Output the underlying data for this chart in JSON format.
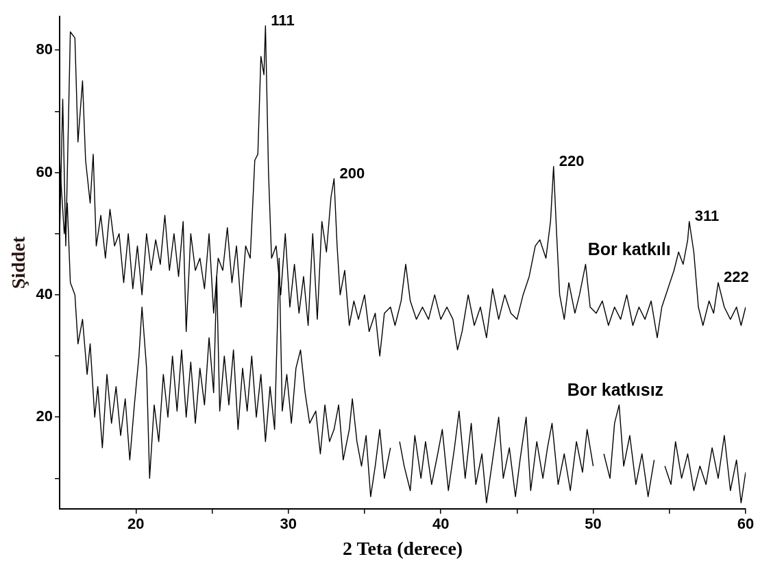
{
  "chart_data": {
    "type": "line",
    "xlabel": "2 Teta (derece)",
    "ylabel": "Şiddet",
    "xlim": [
      15,
      60
    ],
    "ylim": [
      5,
      85.5
    ],
    "xticks": [
      20,
      {
        "value": 25,
        "label": null
      },
      30,
      {
        "value": 35,
        "label": null
      },
      40,
      {
        "value": 45,
        "label": null
      },
      50,
      {
        "value": 55,
        "label": null
      },
      60
    ],
    "yticks": [
      {
        "value": 10,
        "label": null
      },
      20,
      {
        "value": 30,
        "label": null
      },
      40,
      {
        "value": 50,
        "label": null
      },
      60,
      {
        "value": 70,
        "label": null
      },
      80
    ],
    "grid": false,
    "legend": false,
    "marker": "none",
    "line_style": "solid",
    "annotations": [
      {
        "text": "111",
        "x": 28.5,
        "y": 84
      },
      {
        "text": "200",
        "x": 33.0,
        "y": 59
      },
      {
        "text": "220",
        "x": 47.4,
        "y": 61
      },
      {
        "text": "311",
        "x": 56.3,
        "y": 52
      },
      {
        "text": "222",
        "x": 58.2,
        "y": 42
      }
    ],
    "series": [
      {
        "name": "Bor katkılı",
        "color": "#000000",
        "x": [
          15,
          15.2,
          15.4,
          15.7,
          16.0,
          16.2,
          16.5,
          16.7,
          17.0,
          17.2,
          17.4,
          17.7,
          18.0,
          18.3,
          18.6,
          18.9,
          19.2,
          19.5,
          19.8,
          20.1,
          20.4,
          20.7,
          21.0,
          21.3,
          21.6,
          21.9,
          22.2,
          22.5,
          22.8,
          23.1,
          23.3,
          23.6,
          23.9,
          24.2,
          24.5,
          24.8,
          25.1,
          25.4,
          25.7,
          26.0,
          26.3,
          26.6,
          26.9,
          27.2,
          27.5,
          27.8,
          28.0,
          28.2,
          28.4,
          28.5,
          28.7,
          28.9,
          29.2,
          29.5,
          29.8,
          30.1,
          30.4,
          30.7,
          31.0,
          31.3,
          31.6,
          31.9,
          32.2,
          32.5,
          32.8,
          33.0,
          33.2,
          33.4,
          33.7,
          34.0,
          34.3,
          34.6,
          35.0,
          35.3,
          35.7,
          36.0,
          36.3,
          36.7,
          37.0,
          37.4,
          37.7,
          38.0,
          38.4,
          38.8,
          39.2,
          39.6,
          40.0,
          40.4,
          40.8,
          41.1,
          41.4,
          41.8,
          42.2,
          42.6,
          43.0,
          43.4,
          43.8,
          44.2,
          44.6,
          45.0,
          45.4,
          45.8,
          46.2,
          46.5,
          46.9,
          47.2,
          47.4,
          47.6,
          47.8,
          48.1,
          48.4,
          48.8,
          49.1,
          49.5,
          49.8,
          50.2,
          50.6,
          51.0,
          51.4,
          51.8,
          52.2,
          52.6,
          53.0,
          53.4,
          53.8,
          54.2,
          54.5,
          54.9,
          55.3,
          55.6,
          55.9,
          56.2,
          56.3,
          56.6,
          56.9,
          57.2,
          57.6,
          57.9,
          58.2,
          58.6,
          59.0,
          59.4,
          59.7,
          60
        ],
        "values": [
          50,
          72,
          48,
          83,
          82,
          65,
          75,
          62,
          55,
          63,
          48,
          53,
          46,
          54,
          48,
          50,
          42,
          50,
          41,
          48,
          40,
          50,
          44,
          49,
          45,
          53,
          44,
          50,
          43,
          52,
          34,
          50,
          44,
          46,
          41,
          50,
          37,
          46,
          44,
          51,
          42,
          48,
          38,
          48,
          46,
          62,
          63,
          79,
          76,
          84,
          60,
          46,
          48,
          40,
          50,
          38,
          45,
          37,
          43,
          35,
          50,
          36,
          52,
          47,
          56,
          59,
          48,
          40,
          44,
          35,
          39,
          36,
          40,
          34,
          37,
          30,
          37,
          38,
          35,
          39,
          45,
          39,
          36,
          38,
          36,
          40,
          36,
          38,
          36,
          31,
          34,
          40,
          35,
          38,
          33,
          41,
          36,
          40,
          37,
          36,
          40,
          43,
          48,
          49,
          46,
          52,
          61,
          50,
          40,
          36,
          42,
          37,
          40,
          45,
          38,
          37,
          39,
          35,
          38,
          36,
          40,
          35,
          38,
          36,
          39,
          33,
          38,
          41,
          44,
          47,
          45,
          49,
          52,
          47,
          38,
          35,
          39,
          37,
          42,
          38,
          36,
          38,
          35,
          38
        ]
      },
      {
        "name": "Bor katkısız",
        "color": "#000000",
        "x": [
          15,
          15.3,
          15.5,
          15.7,
          16.0,
          16.2,
          16.5,
          16.8,
          17.0,
          17.3,
          17.5,
          17.8,
          18.1,
          18.4,
          18.7,
          19.0,
          19.3,
          19.6,
          19.9,
          20.2,
          20.4,
          20.7,
          20.9,
          21.2,
          21.5,
          21.8,
          22.1,
          22.4,
          22.7,
          23.0,
          23.3,
          23.6,
          23.9,
          24.2,
          24.5,
          24.8,
          25.1,
          25.3,
          25.5,
          25.8,
          26.1,
          26.4,
          26.7,
          27.0,
          27.3,
          27.6,
          27.9,
          28.2,
          28.5,
          28.8,
          29.1,
          29.4,
          29.6,
          29.9,
          30.2,
          30.5,
          30.8,
          31.1,
          31.4,
          31.8,
          32.1,
          32.4,
          32.7,
          33.0,
          33.3,
          33.6,
          34.0,
          34.2,
          34.5,
          34.8,
          35.1,
          35.4,
          35.7,
          36.0,
          36.3,
          36.7,
          37.0,
          37.3,
          37.6,
          38.0,
          38.3,
          38.7,
          39.0,
          39.4,
          39.8,
          40.1,
          40.5,
          40.9,
          41.2,
          41.6,
          42.0,
          42.3,
          42.7,
          43.0,
          43.4,
          43.8,
          44.1,
          44.5,
          44.9,
          45.2,
          45.6,
          45.9,
          46.3,
          46.7,
          47.0,
          47.3,
          47.7,
          48.1,
          48.5,
          48.9,
          49.3,
          49.6,
          50.0,
          50.3,
          50.7,
          51.1,
          51.4,
          51.7,
          52.0,
          52.4,
          52.8,
          53.2,
          53.6,
          54.0,
          54.3,
          54.7,
          55.1,
          55.4,
          55.8,
          56.2,
          56.6,
          57.0,
          57.4,
          57.8,
          58.2,
          58.6,
          59.0,
          59.4,
          59.7,
          60
        ],
        "values": [
          62,
          50,
          55,
          42,
          40,
          32,
          36,
          27,
          32,
          20,
          25,
          15,
          27,
          19,
          25,
          17,
          23,
          13,
          22,
          30,
          38,
          28,
          10,
          22,
          16,
          27,
          20,
          30,
          21,
          31,
          20,
          29,
          19,
          28,
          22,
          33,
          24,
          43,
          21,
          30,
          22,
          31,
          18,
          28,
          21,
          30,
          20,
          27,
          16,
          25,
          18,
          46,
          21,
          27,
          19,
          28,
          31,
          24,
          19,
          21,
          14,
          22,
          16,
          18,
          22,
          13,
          18,
          23,
          16,
          12,
          17,
          7,
          12,
          18,
          10,
          15,
          null,
          16,
          12,
          8,
          17,
          10,
          16,
          9,
          14,
          18,
          8,
          15,
          21,
          10,
          19,
          9,
          14,
          6,
          13,
          20,
          10,
          15,
          7,
          13,
          20,
          8,
          16,
          10,
          15,
          19,
          9,
          14,
          8,
          16,
          11,
          18,
          12,
          null,
          14,
          10,
          19,
          22,
          12,
          17,
          9,
          14,
          7,
          13,
          null,
          12,
          9,
          16,
          10,
          14,
          8,
          12,
          9,
          15,
          10,
          17,
          8,
          13,
          6,
          11
        ]
      }
    ]
  }
}
